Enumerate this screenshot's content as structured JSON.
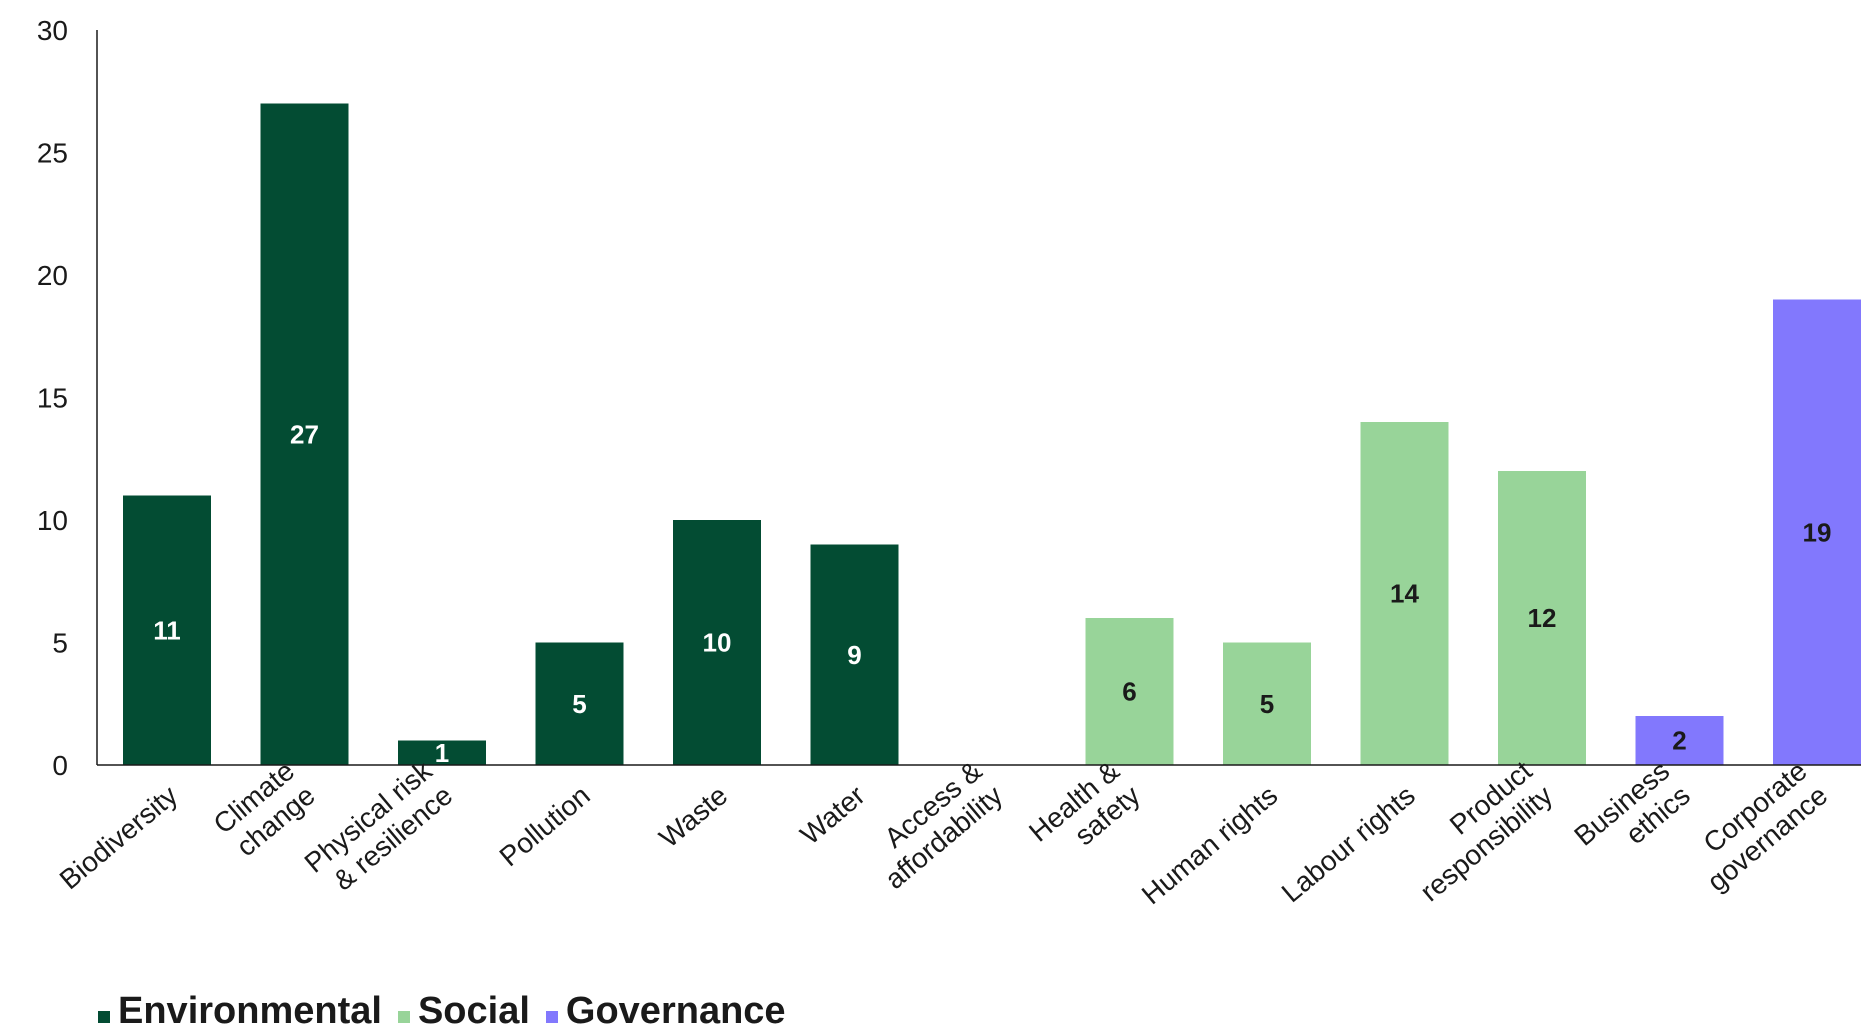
{
  "chart_data": {
    "type": "bar",
    "title": "",
    "xlabel": "",
    "ylabel": "",
    "ylim": [
      0,
      30
    ],
    "yticks": [
      0,
      5,
      10,
      15,
      20,
      25,
      30
    ],
    "grid": false,
    "legend_position": "bottom-left",
    "categories": [
      [
        "Biodiversity"
      ],
      [
        "Climate",
        "change"
      ],
      [
        "Physical risk",
        "& resilience"
      ],
      [
        "Pollution"
      ],
      [
        "Waste"
      ],
      [
        "Water"
      ],
      [
        "Access &",
        "affordability"
      ],
      [
        "Health &",
        "safety"
      ],
      [
        "Human rights"
      ],
      [
        "Labour rights"
      ],
      [
        "Product",
        "responsibility"
      ],
      [
        "Business",
        "ethics"
      ],
      [
        "Corporate",
        "governance"
      ]
    ],
    "values": [
      11,
      27,
      1,
      5,
      10,
      9,
      0,
      6,
      5,
      14,
      12,
      2,
      19
    ],
    "groups": [
      "Environmental",
      "Environmental",
      "Environmental",
      "Environmental",
      "Environmental",
      "Environmental",
      "Social",
      "Social",
      "Social",
      "Social",
      "Social",
      "Governance",
      "Governance"
    ],
    "show_value_labels": [
      true,
      true,
      true,
      true,
      true,
      true,
      false,
      true,
      true,
      true,
      true,
      true,
      true
    ],
    "legend": [
      {
        "name": "Environmental",
        "color": "#034c33"
      },
      {
        "name": "Social",
        "color": "#98d499"
      },
      {
        "name": "Governance",
        "color": "#8278fd"
      }
    ],
    "label_colors": {
      "Environmental": "#ffffff",
      "Social": "#1a1a1a",
      "Governance": "#1a1a1a"
    }
  }
}
